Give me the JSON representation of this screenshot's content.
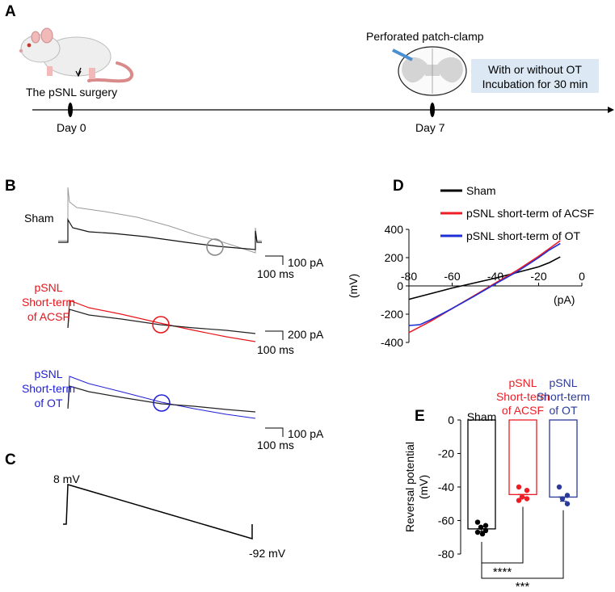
{
  "panels": {
    "a": "A",
    "b": "B",
    "c": "C",
    "d": "D",
    "e": "E"
  },
  "panel_a": {
    "surgery_label": "The pSNL surgery",
    "day0": "Day 0",
    "day7": "Day 7",
    "patch_label": "Perforated patch-clamp",
    "box_line1": "With or without OT",
    "box_line2": "Incubation for 30 min",
    "box_color": "#dce9f5"
  },
  "panel_b": {
    "traces": [
      {
        "label_lines": [
          "Sham"
        ],
        "color": "#000000",
        "scale_current": "100 pA",
        "scale_time": "100 ms"
      },
      {
        "label_lines": [
          "pSNL",
          "Short-term",
          "of ACSF"
        ],
        "color": "#e8161b",
        "scale_current": "200 pA",
        "scale_time": "100 ms"
      },
      {
        "label_lines": [
          "pSNL",
          "Short-term",
          "of OT"
        ],
        "color": "#1f1fd6",
        "scale_current": "100 pA",
        "scale_time": "100 ms"
      }
    ]
  },
  "panel_c": {
    "start_label": "8 mV",
    "end_label": "-92 mV"
  },
  "chart_data": [
    {
      "id": "D",
      "type": "line",
      "title": "",
      "ylabel": "(mV)",
      "xlabel": "(pA)",
      "xlim": [
        -80,
        0
      ],
      "ylim": [
        -400,
        400
      ],
      "x_ticks": [
        "-80",
        "-60",
        "-40",
        "-20",
        "0"
      ],
      "y_ticks": [
        "400",
        "200",
        "0",
        "-200",
        "-400"
      ],
      "series": [
        {
          "name": "Sham",
          "color": "#000000",
          "points": [
            [
              -80,
              -95
            ],
            [
              -70,
              -55
            ],
            [
              -60,
              -15
            ],
            [
              -50,
              20
            ],
            [
              -40,
              55
            ],
            [
              -30,
              95
            ],
            [
              -20,
              135
            ],
            [
              -15,
              165
            ],
            [
              -10,
              205
            ]
          ]
        },
        {
          "name": "pSNL short-term of ACSF",
          "color": "#ee1c25",
          "points": [
            [
              -80,
              -330
            ],
            [
              -70,
              -250
            ],
            [
              -60,
              -160
            ],
            [
              -50,
              -70
            ],
            [
              -45,
              -25
            ],
            [
              -40,
              20
            ],
            [
              -30,
              110
            ],
            [
              -20,
              210
            ],
            [
              -15,
              265
            ],
            [
              -10,
              320
            ]
          ]
        },
        {
          "name": "pSNL short-term of OT",
          "color": "#1f2fd8",
          "points": [
            [
              -80,
              -280
            ],
            [
              -75,
              -275
            ],
            [
              -70,
              -240
            ],
            [
              -60,
              -160
            ],
            [
              -50,
              -75
            ],
            [
              -45,
              -30
            ],
            [
              -40,
              15
            ],
            [
              -30,
              100
            ],
            [
              -20,
              200
            ],
            [
              -15,
              255
            ],
            [
              -10,
              300
            ]
          ]
        }
      ]
    },
    {
      "id": "E",
      "type": "bar",
      "ylabel": "Reversal potential (mV)",
      "ylim": [
        -80,
        0
      ],
      "y_ticks": [
        "0",
        "-20",
        "-40",
        "-60",
        "-80"
      ],
      "categories": [
        "Sham",
        "pSNL Short-term of ACSF",
        "pSNL Short-term of OT"
      ],
      "category_lines": [
        [
          "Sham"
        ],
        [
          "pSNL",
          "Short-term",
          "of ACSF"
        ],
        [
          "pSNL",
          "Short-term",
          "of OT"
        ]
      ],
      "values": [
        -65,
        -44.5,
        -46
      ],
      "sem": [
        1.5,
        1.5,
        2.5
      ],
      "colors": [
        "#000000",
        "#ee1c25",
        "#2b3a9b"
      ],
      "points": [
        [
          -61,
          -63,
          -64,
          -66,
          -67,
          -68
        ],
        [
          -40,
          -42,
          -46,
          -47,
          -48
        ],
        [
          -40,
          -45,
          -47,
          -50
        ]
      ],
      "significance": [
        {
          "pair": [
            0,
            1
          ],
          "label": "****"
        },
        {
          "pair": [
            0,
            2
          ],
          "label": "***"
        }
      ]
    }
  ]
}
